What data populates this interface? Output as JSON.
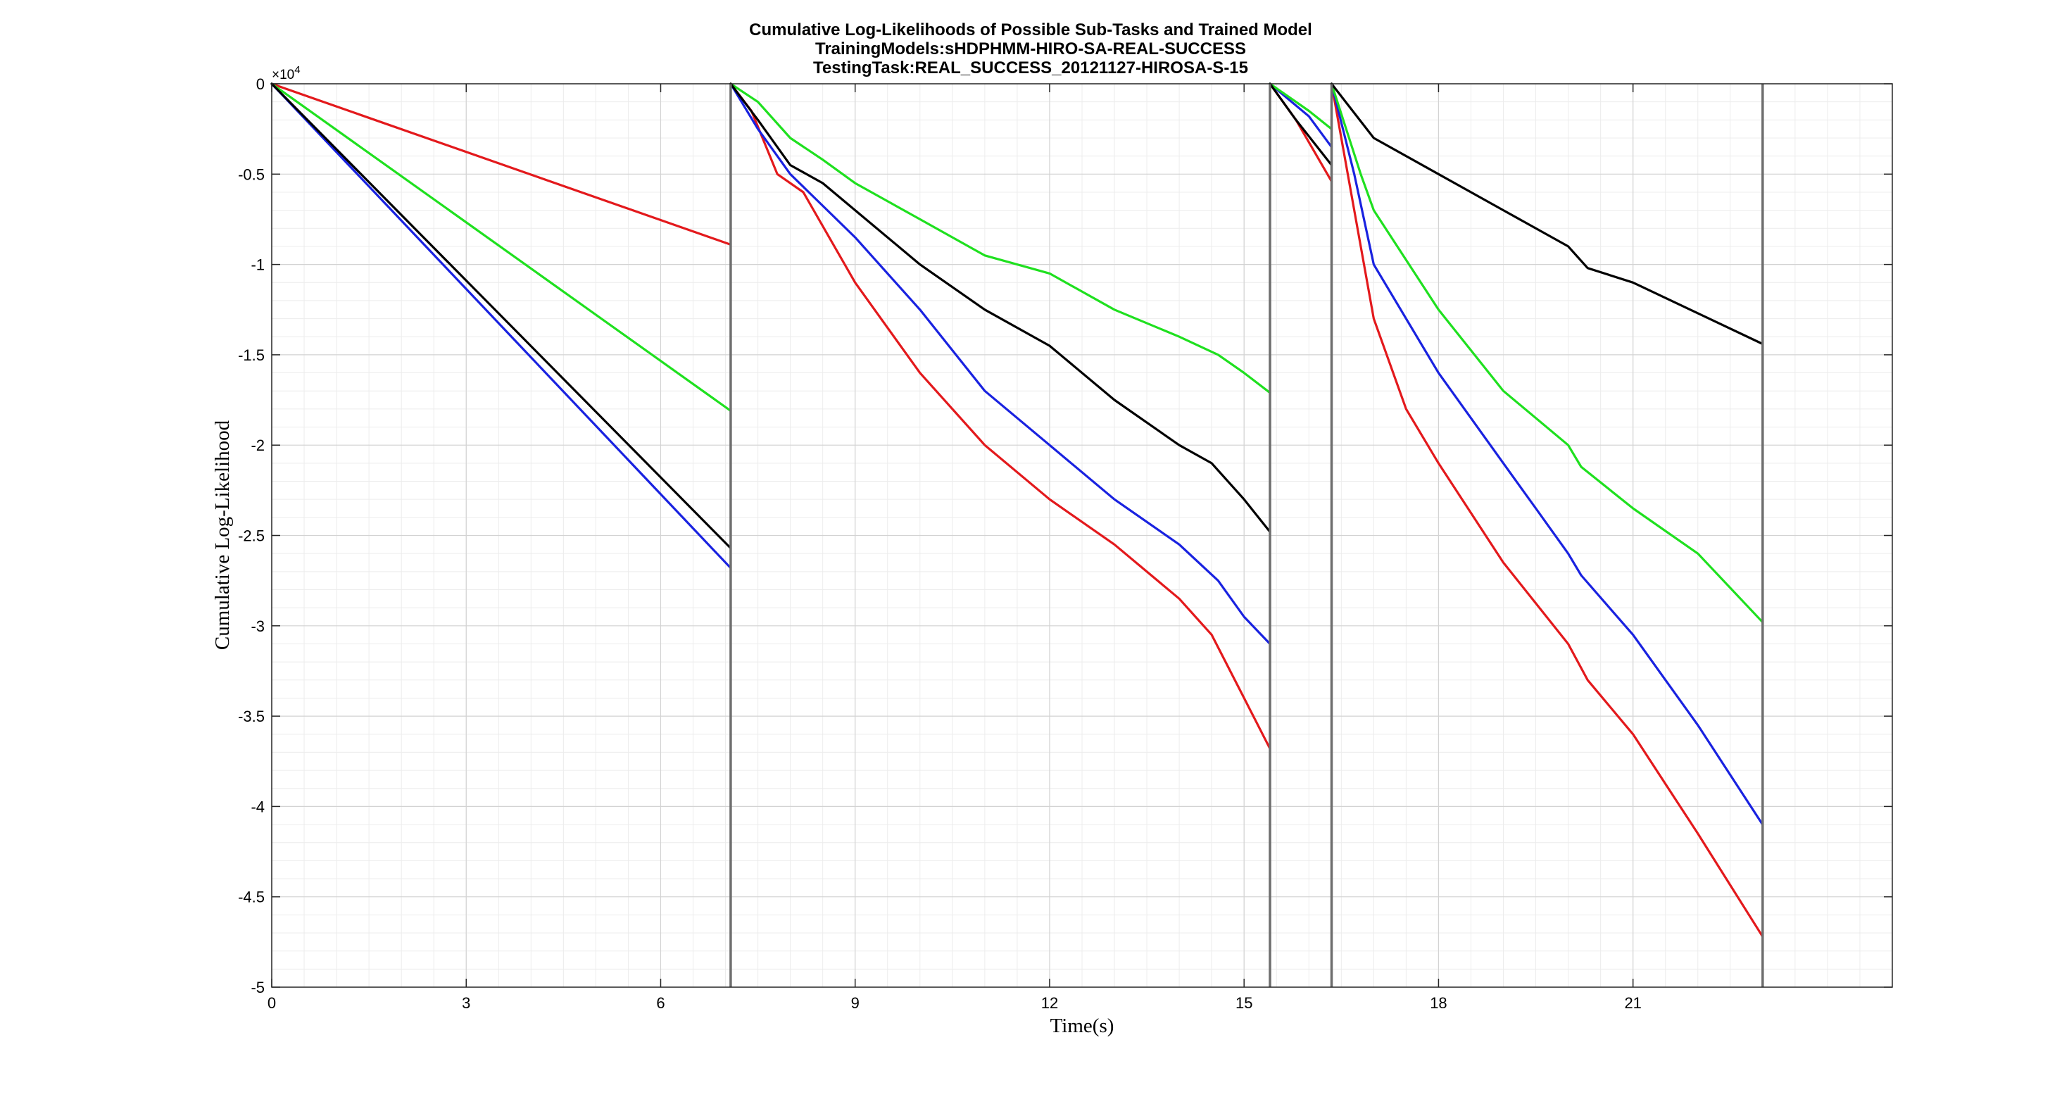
{
  "chart_data": {
    "type": "line",
    "title": [
      "Cumulative Log-Likelihoods of Possible Sub-Tasks and Trained Model",
      "TrainingModels:sHDPHMM-HIRO-SA-REAL-SUCCESS",
      "TestingTask:REAL_SUCCESS_20121127-HIROSA-S-15"
    ],
    "xlabel": "Time(s)",
    "ylabel": "Cumulative Log-Likelihood",
    "y_exponent": "×10",
    "y_exponent_power": "4",
    "xlim": [
      0,
      25
    ],
    "ylim": [
      -5,
      0
    ],
    "x_ticks": [
      0,
      3,
      6,
      9,
      12,
      15,
      18,
      21
    ],
    "x_tick_labels": [
      "0",
      "3",
      "6",
      "9",
      "12",
      "15",
      "18",
      "21"
    ],
    "y_ticks": [
      0,
      -0.5,
      -1,
      -1.5,
      -2,
      -2.5,
      -3,
      -3.5,
      -4,
      -4.5,
      -5
    ],
    "y_tick_labels": [
      "0",
      "-0.5",
      "-1",
      "-1.5",
      "-2",
      "-2.5",
      "-3",
      "-3.5",
      "-4",
      "-4.5",
      "-5"
    ],
    "grid": true,
    "minor_grid": true,
    "boundaries": [
      7.08,
      15.4,
      16.35,
      23.0
    ],
    "colors": {
      "red": "#e3191c",
      "blue": "#1922e0",
      "green": "#1fe01f",
      "black": "#000000",
      "boundary": "#6e6e6e"
    },
    "series": [
      {
        "color": "red",
        "segments": [
          [
            [
              0,
              0
            ],
            [
              7.08,
              -0.89
            ]
          ],
          [
            [
              7.08,
              0
            ],
            [
              7.4,
              -0.15
            ],
            [
              7.8,
              -0.5
            ],
            [
              8.2,
              -0.6
            ],
            [
              9.0,
              -1.1
            ],
            [
              10.0,
              -1.6
            ],
            [
              11.0,
              -2.0
            ],
            [
              12.0,
              -2.3
            ],
            [
              13.0,
              -2.55
            ],
            [
              14.0,
              -2.85
            ],
            [
              14.5,
              -3.05
            ],
            [
              15.0,
              -3.4
            ],
            [
              15.4,
              -3.68
            ]
          ],
          [
            [
              15.4,
              0
            ],
            [
              15.8,
              -0.2
            ],
            [
              16.35,
              -0.54
            ]
          ],
          [
            [
              16.35,
              0
            ],
            [
              16.7,
              -0.7
            ],
            [
              17.0,
              -1.3
            ],
            [
              17.5,
              -1.8
            ],
            [
              18.0,
              -2.1
            ],
            [
              19.0,
              -2.65
            ],
            [
              20.0,
              -3.1
            ],
            [
              20.3,
              -3.3
            ],
            [
              21.0,
              -3.6
            ],
            [
              22.0,
              -4.15
            ],
            [
              23.0,
              -4.72
            ]
          ]
        ]
      },
      {
        "color": "blue",
        "segments": [
          [
            [
              0,
              0
            ],
            [
              7.08,
              -2.68
            ]
          ],
          [
            [
              7.08,
              0
            ],
            [
              7.5,
              -0.25
            ],
            [
              8.0,
              -0.5
            ],
            [
              9.0,
              -0.85
            ],
            [
              10.0,
              -1.25
            ],
            [
              11.0,
              -1.7
            ],
            [
              12.0,
              -2.0
            ],
            [
              13.0,
              -2.3
            ],
            [
              14.0,
              -2.55
            ],
            [
              14.6,
              -2.75
            ],
            [
              15.0,
              -2.95
            ],
            [
              15.4,
              -3.1
            ]
          ],
          [
            [
              15.4,
              0
            ],
            [
              16.0,
              -0.18
            ],
            [
              16.35,
              -0.35
            ]
          ],
          [
            [
              16.35,
              0
            ],
            [
              16.7,
              -0.5
            ],
            [
              17.0,
              -1.0
            ],
            [
              18.0,
              -1.6
            ],
            [
              19.0,
              -2.1
            ],
            [
              19.5,
              -2.35
            ],
            [
              20.0,
              -2.6
            ],
            [
              20.2,
              -2.72
            ],
            [
              21.0,
              -3.05
            ],
            [
              22.0,
              -3.55
            ],
            [
              23.0,
              -4.1
            ]
          ]
        ]
      },
      {
        "color": "green",
        "segments": [
          [
            [
              0,
              0
            ],
            [
              7.08,
              -1.81
            ]
          ],
          [
            [
              7.08,
              0
            ],
            [
              7.5,
              -0.1
            ],
            [
              8.0,
              -0.3
            ],
            [
              8.5,
              -0.42
            ],
            [
              9.0,
              -0.55
            ],
            [
              10.0,
              -0.75
            ],
            [
              11.0,
              -0.95
            ],
            [
              12.0,
              -1.05
            ],
            [
              13.0,
              -1.25
            ],
            [
              14.0,
              -1.4
            ],
            [
              14.6,
              -1.5
            ],
            [
              15.0,
              -1.6
            ],
            [
              15.4,
              -1.71
            ]
          ],
          [
            [
              15.4,
              0
            ],
            [
              16.0,
              -0.15
            ],
            [
              16.35,
              -0.25
            ]
          ],
          [
            [
              16.35,
              0
            ],
            [
              16.8,
              -0.5
            ],
            [
              17.0,
              -0.7
            ],
            [
              18.0,
              -1.25
            ],
            [
              19.0,
              -1.7
            ],
            [
              20.0,
              -2.0
            ],
            [
              20.2,
              -2.12
            ],
            [
              21.0,
              -2.35
            ],
            [
              22.0,
              -2.6
            ],
            [
              23.0,
              -2.98
            ]
          ]
        ]
      },
      {
        "color": "black",
        "segments": [
          [
            [
              0,
              0
            ],
            [
              7.08,
              -2.57
            ]
          ],
          [
            [
              7.08,
              0
            ],
            [
              7.5,
              -0.2
            ],
            [
              8.0,
              -0.45
            ],
            [
              8.5,
              -0.55
            ],
            [
              9.0,
              -0.7
            ],
            [
              10.0,
              -1.0
            ],
            [
              11.0,
              -1.25
            ],
            [
              12.0,
              -1.45
            ],
            [
              13.0,
              -1.75
            ],
            [
              14.0,
              -2.0
            ],
            [
              14.5,
              -2.1
            ],
            [
              15.0,
              -2.3
            ],
            [
              15.4,
              -2.48
            ]
          ],
          [
            [
              15.4,
              0
            ],
            [
              15.8,
              -0.2
            ],
            [
              16.35,
              -0.45
            ]
          ],
          [
            [
              16.35,
              0
            ],
            [
              17.0,
              -0.3
            ],
            [
              18.0,
              -0.5
            ],
            [
              19.0,
              -0.7
            ],
            [
              20.0,
              -0.9
            ],
            [
              20.3,
              -1.02
            ],
            [
              21.0,
              -1.1
            ],
            [
              22.0,
              -1.27
            ],
            [
              23.0,
              -1.44
            ]
          ]
        ]
      }
    ]
  }
}
